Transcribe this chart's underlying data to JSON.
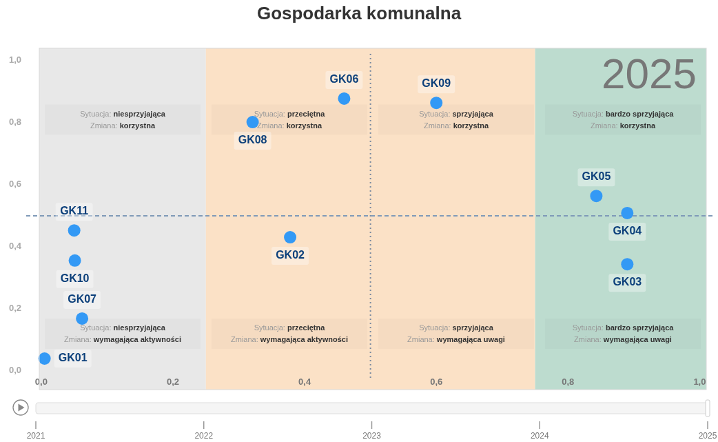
{
  "chart_data": {
    "type": "scatter",
    "title": "Gospodarka komunalna",
    "xlim": [
      -0.003,
      1.01
    ],
    "ylim": [
      -0.06,
      1.04
    ],
    "xticks": [
      {
        "value": 0,
        "label": "0,0"
      },
      {
        "value": 0.2,
        "label": "0,2"
      },
      {
        "value": 0.4,
        "label": "0,4"
      },
      {
        "value": 0.6,
        "label": "0,6"
      },
      {
        "value": 0.8,
        "label": "0,8"
      },
      {
        "value": 1,
        "label": "1,0"
      }
    ],
    "yticks": [
      {
        "value": 0,
        "label": "0,0"
      },
      {
        "value": 0.2,
        "label": "0,2"
      },
      {
        "value": 0.4,
        "label": "0,4"
      },
      {
        "value": 0.6,
        "label": "0,6"
      },
      {
        "value": 0.8,
        "label": "0,8"
      },
      {
        "value": 1,
        "label": "1,0"
      }
    ],
    "x2lim": [
      2021,
      2025
    ],
    "x2ticks": [
      2021,
      2022,
      2023,
      2024,
      2025
    ],
    "grid": false,
    "marker": "circle",
    "bands": [
      {
        "axis": "x",
        "from": -0.003,
        "to": 0.25,
        "color": "#e8e8e8"
      },
      {
        "axis": "x",
        "from": 0.25,
        "to": 0.75,
        "color": "#fbe1c6"
      },
      {
        "axis": "x",
        "from": 0.75,
        "to": 1.01,
        "color": "#bddccf"
      }
    ],
    "ref_lines": [
      {
        "axis": "x",
        "value": 0.5,
        "color": "#7a8aa0",
        "line_style": "dotted"
      },
      {
        "axis": "y",
        "value": 0.5,
        "color": "#7f9ab8",
        "line_style": "dashed"
      }
    ],
    "series": [
      {
        "name": "GK01",
        "color": "#3399f5",
        "x": [
          0.005
        ],
        "values": [
          0.04
        ]
      },
      {
        "name": "GK02",
        "color": "#3399f5",
        "x": [
          0.378
        ],
        "values": [
          0.431
        ]
      },
      {
        "name": "GK03",
        "color": "#3399f5",
        "x": [
          0.89
        ],
        "values": [
          0.344
        ]
      },
      {
        "name": "GK04",
        "color": "#3399f5",
        "x": [
          0.89
        ],
        "values": [
          0.509
        ]
      },
      {
        "name": "GK05",
        "color": "#3399f5",
        "x": [
          0.843
        ],
        "values": [
          0.564
        ]
      },
      {
        "name": "GK06",
        "color": "#3399f5",
        "x": [
          0.46
        ],
        "values": [
          0.878
        ]
      },
      {
        "name": "GK07",
        "color": "#3399f5",
        "x": [
          0.062
        ],
        "values": [
          0.169
        ]
      },
      {
        "name": "GK08",
        "color": "#3399f5",
        "x": [
          0.321
        ],
        "values": [
          0.802
        ]
      },
      {
        "name": "GK09",
        "color": "#3399f5",
        "x": [
          0.6
        ],
        "values": [
          0.864
        ]
      },
      {
        "name": "GK10",
        "color": "#3399f5",
        "x": [
          0.051
        ],
        "values": [
          0.356
        ]
      },
      {
        "name": "GK11",
        "color": "#3399f5",
        "x": [
          0.05
        ],
        "values": [
          0.453
        ]
      }
    ],
    "annotations": [
      "2025",
      "Sytuacja: niesprzyjająca",
      "Zmiana: korzystna",
      "Sytuacja: przeciętna",
      "Zmiana: korzystna",
      "Sytuacja: sprzyjająca",
      "Zmiana: korzystna",
      "Sytuacja: bardzo sprzyjająca",
      "Zmiana: korzystna",
      "Sytuacja: niesprzyjająca",
      "Zmiana: wymagająca aktywności",
      "Sytuacja: przeciętna",
      "Zmiana: wymagająca aktywności",
      "Sytuacja: sprzyjająca",
      "Zmiana: wymagająca uwagi",
      "Sytuacja: bardzo sprzyjająca",
      "Zmiana: wymagająca uwagi"
    ]
  }
}
